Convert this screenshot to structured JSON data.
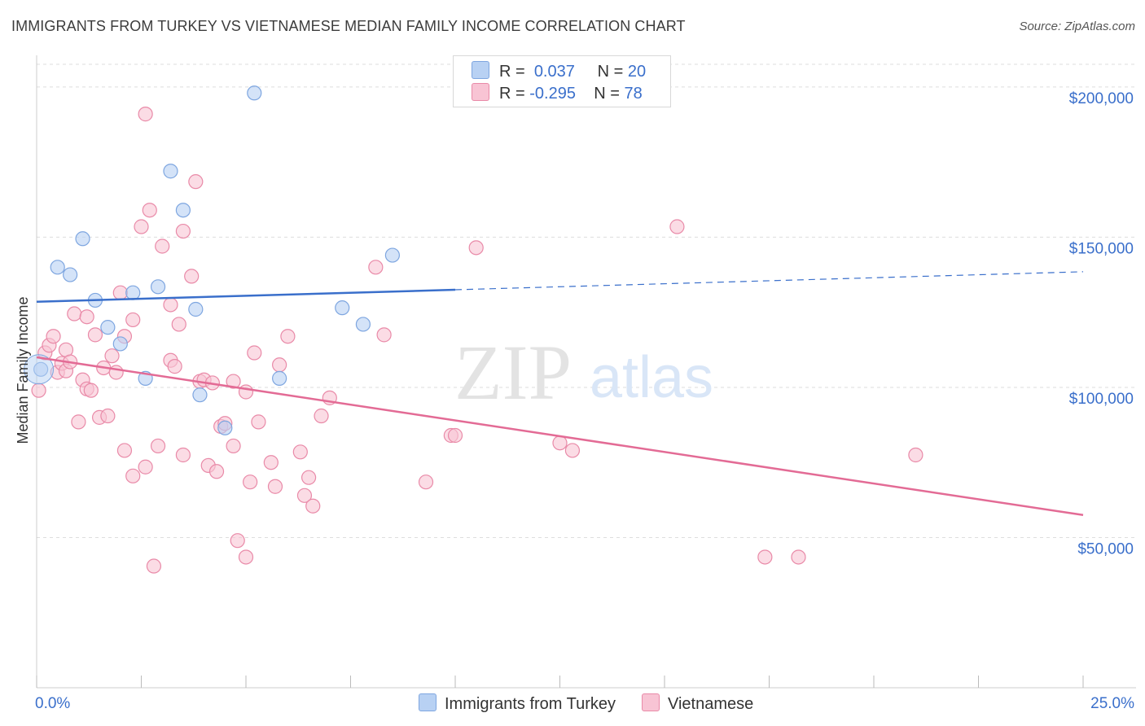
{
  "header": {
    "title": "IMMIGRANTS FROM TURKEY VS VIETNAMESE MEDIAN FAMILY INCOME CORRELATION CHART",
    "source": "Source: ZipAtlas.com"
  },
  "legend": {
    "rows": [
      {
        "r_label": "R =",
        "r_value": "0.037",
        "n_label": "N =",
        "n_value": "20"
      },
      {
        "r_label": "R =",
        "r_value": "-0.295",
        "n_label": "N =",
        "n_value": "78"
      }
    ]
  },
  "watermark": {
    "zip": "ZIP",
    "atlas": "atlas"
  },
  "colors": {
    "blue_fill": "#b8d1f3",
    "blue_stroke": "#7ea6e0",
    "blue_line": "#3a6fcb",
    "pink_fill": "#f8c4d4",
    "pink_stroke": "#e98aa8",
    "pink_line": "#e36b95",
    "axis_text": "#3a6fcb",
    "grid": "#dddddd"
  },
  "chart_data": {
    "type": "scatter",
    "title": "IMMIGRANTS FROM TURKEY VS VIETNAMESE MEDIAN FAMILY INCOME CORRELATION CHART",
    "xlabel": "",
    "ylabel": "Median Family Income",
    "xlim": [
      0,
      25
    ],
    "ylim": [
      0,
      210000
    ],
    "x_tick_labels": [
      "0.0%",
      "25.0%"
    ],
    "y_ticks": [
      50000,
      100000,
      150000,
      200000
    ],
    "y_tick_labels": [
      "$50,000",
      "$100,000",
      "$150,000",
      "$200,000"
    ],
    "grid": true,
    "legend_position": "top-center and bottom",
    "series": [
      {
        "name": "Immigrants from Turkey",
        "r": 0.037,
        "n": 20,
        "trend": {
          "x0": 0,
          "y0": 128500,
          "x1": 25,
          "y1": 138500,
          "solid_until_x": 10
        },
        "points": [
          [
            0.1,
            106000
          ],
          [
            0.5,
            140000
          ],
          [
            0.8,
            137500
          ],
          [
            1.1,
            149500
          ],
          [
            1.4,
            129000
          ],
          [
            1.7,
            120000
          ],
          [
            2.0,
            114500
          ],
          [
            2.3,
            131500
          ],
          [
            2.6,
            103000
          ],
          [
            2.9,
            133500
          ],
          [
            3.2,
            172000
          ],
          [
            3.5,
            159000
          ],
          [
            3.8,
            126000
          ],
          [
            3.9,
            97500
          ],
          [
            4.5,
            86500
          ],
          [
            5.2,
            198000
          ],
          [
            5.8,
            103000
          ],
          [
            7.3,
            126500
          ],
          [
            7.8,
            121000
          ],
          [
            8.5,
            144000
          ]
        ]
      },
      {
        "name": "Vietnamese",
        "r": -0.295,
        "n": 78,
        "trend": {
          "x0": 0,
          "y0": 110000,
          "x1": 25,
          "y1": 57500
        },
        "points": [
          [
            0.05,
            99000
          ],
          [
            0.2,
            111500
          ],
          [
            0.3,
            114000
          ],
          [
            0.4,
            117000
          ],
          [
            0.5,
            105000
          ],
          [
            0.6,
            108000
          ],
          [
            0.7,
            105500
          ],
          [
            0.7,
            112500
          ],
          [
            0.8,
            108500
          ],
          [
            0.9,
            124500
          ],
          [
            1.0,
            88500
          ],
          [
            1.1,
            102500
          ],
          [
            1.2,
            123500
          ],
          [
            1.2,
            99500
          ],
          [
            1.3,
            99000
          ],
          [
            1.4,
            117500
          ],
          [
            1.5,
            90000
          ],
          [
            1.6,
            106500
          ],
          [
            1.7,
            90500
          ],
          [
            1.8,
            110500
          ],
          [
            1.9,
            105000
          ],
          [
            2.0,
            131500
          ],
          [
            2.1,
            117000
          ],
          [
            2.1,
            79000
          ],
          [
            2.3,
            122500
          ],
          [
            2.3,
            70500
          ],
          [
            2.5,
            153500
          ],
          [
            2.6,
            191000
          ],
          [
            2.6,
            73500
          ],
          [
            2.7,
            159000
          ],
          [
            2.8,
            40500
          ],
          [
            2.9,
            80500
          ],
          [
            3.0,
            147000
          ],
          [
            3.2,
            127500
          ],
          [
            3.2,
            109000
          ],
          [
            3.3,
            107000
          ],
          [
            3.4,
            121000
          ],
          [
            3.5,
            77500
          ],
          [
            3.5,
            152000
          ],
          [
            3.7,
            137000
          ],
          [
            3.8,
            168500
          ],
          [
            3.9,
            102000
          ],
          [
            4.0,
            102500
          ],
          [
            4.1,
            74000
          ],
          [
            4.2,
            101500
          ],
          [
            4.3,
            72000
          ],
          [
            4.4,
            87000
          ],
          [
            4.5,
            88000
          ],
          [
            4.7,
            102000
          ],
          [
            4.7,
            80500
          ],
          [
            4.8,
            49000
          ],
          [
            5.0,
            43500
          ],
          [
            5.0,
            98500
          ],
          [
            5.1,
            68500
          ],
          [
            5.2,
            111500
          ],
          [
            5.3,
            88500
          ],
          [
            5.6,
            75000
          ],
          [
            5.7,
            67000
          ],
          [
            5.8,
            107500
          ],
          [
            6.0,
            117000
          ],
          [
            6.3,
            78500
          ],
          [
            6.4,
            64000
          ],
          [
            6.5,
            70000
          ],
          [
            6.6,
            60500
          ],
          [
            6.8,
            90500
          ],
          [
            7.0,
            96500
          ],
          [
            8.1,
            140000
          ],
          [
            8.3,
            117500
          ],
          [
            9.3,
            68500
          ],
          [
            9.9,
            84000
          ],
          [
            10.0,
            84000
          ],
          [
            10.5,
            146500
          ],
          [
            12.5,
            81500
          ],
          [
            12.8,
            79000
          ],
          [
            15.3,
            153500
          ],
          [
            17.4,
            43500
          ],
          [
            18.2,
            43500
          ],
          [
            21.0,
            77500
          ]
        ]
      }
    ]
  }
}
